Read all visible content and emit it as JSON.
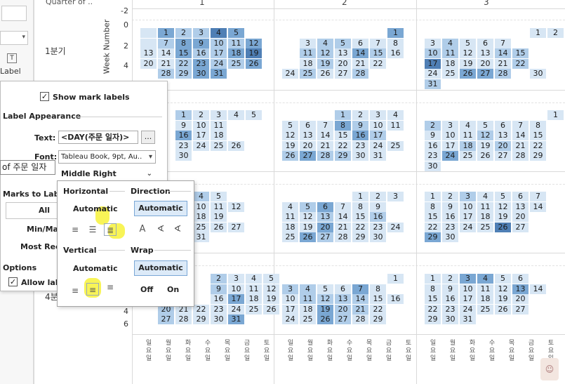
{
  "header": {
    "quarter_label": "Quarter of ..",
    "quarters": [
      "1",
      "2",
      "3"
    ]
  },
  "rows": {
    "row_labels": [
      {
        "label": "1분기",
        "y": 64
      },
      {
        "label": "4분",
        "y": 414
      }
    ],
    "y_axis_title": "Week Number"
  },
  "y_ticks": [
    {
      "v": "-2",
      "y": 16
    },
    {
      "v": "0",
      "y": 36
    },
    {
      "v": "2",
      "y": 66
    },
    {
      "v": "4",
      "y": 94
    },
    {
      "v": "4",
      "y": 444
    },
    {
      "v": "6",
      "y": 462
    }
  ],
  "weekday_labels": [
    "일요일",
    "월요일",
    "화요일",
    "수요일",
    "목요일",
    "금요일",
    "토요일"
  ],
  "calendar": {
    "colors": [
      "#d7e6f4",
      "#b0cde9",
      "#7aa7d3",
      "#4f7fb5"
    ],
    "blocks": [
      {
        "col": 0,
        "top": 40,
        "rows": [
          [
            [
              0,
              0,
              ""
            ],
            [
              0,
              0,
              ""
            ],
            [
              0,
              0,
              ""
            ],
            [
              1,
              2,
              "1"
            ],
            [
              2,
              1,
              "2"
            ],
            [
              3,
              1,
              "3"
            ],
            [
              4,
              3,
              "4"
            ],
            [
              5,
              2,
              "5"
            ]
          ],
          [
            [
              0,
              0,
              ""
            ],
            [
              1,
              1,
              "7"
            ],
            [
              2,
              2,
              "8"
            ],
            [
              3,
              2,
              "9"
            ],
            [
              4,
              1,
              "10"
            ],
            [
              5,
              1,
              "11"
            ],
            [
              6,
              2,
              "12"
            ]
          ],
          [
            [
              0,
              0,
              "13"
            ],
            [
              1,
              0,
              "14"
            ],
            [
              2,
              2,
              "15"
            ],
            [
              3,
              1,
              "16"
            ],
            [
              4,
              1,
              "17"
            ],
            [
              5,
              2,
              "18"
            ],
            [
              6,
              3,
              "19"
            ]
          ],
          [
            [
              0,
              0,
              "20"
            ],
            [
              1,
              0,
              "21"
            ],
            [
              2,
              1,
              "22"
            ],
            [
              3,
              2,
              "23"
            ],
            [
              4,
              1,
              "24"
            ],
            [
              5,
              1,
              "25"
            ],
            [
              6,
              2,
              "26"
            ]
          ],
          [
            [
              1,
              1,
              "28"
            ],
            [
              2,
              1,
              "29"
            ],
            [
              3,
              2,
              "30"
            ],
            [
              4,
              2,
              "31"
            ]
          ]
        ]
      },
      {
        "col": 1,
        "top": 40,
        "rows": [
          [
            [
              6,
              2,
              "1"
            ]
          ],
          [
            [
              1,
              0,
              "3"
            ],
            [
              2,
              1,
              "4"
            ],
            [
              3,
              1,
              "5"
            ],
            [
              4,
              0,
              "6"
            ],
            [
              5,
              0,
              "7"
            ],
            [
              6,
              0,
              "8"
            ]
          ],
          [
            [
              1,
              1,
              "11"
            ],
            [
              2,
              1,
              "12"
            ],
            [
              3,
              0,
              "13"
            ],
            [
              4,
              2,
              "14"
            ],
            [
              5,
              1,
              "15"
            ],
            [
              6,
              0,
              "16"
            ]
          ],
          [
            [
              1,
              0,
              "18"
            ],
            [
              2,
              1,
              "19"
            ],
            [
              3,
              0,
              "20"
            ],
            [
              4,
              0,
              "21"
            ],
            [
              5,
              0,
              "22"
            ]
          ],
          [
            [
              0,
              0,
              "24"
            ],
            [
              1,
              1,
              "25"
            ],
            [
              2,
              0,
              "26"
            ],
            [
              3,
              0,
              "27"
            ],
            [
              4,
              1,
              "28"
            ]
          ]
        ]
      },
      {
        "col": 2,
        "top": 40,
        "rows": [
          [
            [
              6,
              0,
              "1"
            ],
            [
              7,
              0,
              "2"
            ]
          ],
          [
            [
              0,
              0,
              "3"
            ],
            [
              1,
              1,
              "4"
            ],
            [
              2,
              0,
              "5"
            ],
            [
              3,
              0,
              "6"
            ],
            [
              4,
              0,
              "7"
            ]
          ],
          [
            [
              0,
              1,
              "10"
            ],
            [
              1,
              1,
              "11"
            ],
            [
              2,
              0,
              "12"
            ],
            [
              3,
              0,
              "13"
            ],
            [
              4,
              1,
              "14"
            ],
            [
              5,
              1,
              "15"
            ]
          ],
          [
            [
              0,
              3,
              "17"
            ],
            [
              1,
              0,
              "18"
            ],
            [
              2,
              0,
              "19"
            ],
            [
              3,
              0,
              "20"
            ],
            [
              4,
              0,
              "21"
            ],
            [
              5,
              1,
              "22"
            ]
          ],
          [
            [
              0,
              0,
              "24"
            ],
            [
              1,
              0,
              "25"
            ],
            [
              2,
              2,
              "26"
            ],
            [
              3,
              2,
              "27"
            ],
            [
              4,
              1,
              "28"
            ],
            [
              6,
              0,
              "30"
            ]
          ],
          [
            [
              0,
              1,
              "31"
            ]
          ]
        ]
      }
    ]
  },
  "format_panel": {
    "show_mark_labels": "Show mark labels",
    "label_appearance": "Label Appearance",
    "text_label": "Text:",
    "text_value": "<DAY(주문 일자)>",
    "dots": "...",
    "font_label": "Font:",
    "font_value": "Tableau Book, 9pt, Au..",
    "alignment_value": "Middle Right",
    "marks_to_label": "Marks to Labe",
    "all_label": "All",
    "min_max": "Min/Ma",
    "most_recent": "Most Reco",
    "options": "Options",
    "allow_label": "Allow lab"
  },
  "tooltip_text": "of 주문 일자",
  "alignment_popup": {
    "horizontal": "Horizontal",
    "direction": "Direction",
    "automatic": "Automatic",
    "vertical": "Vertical",
    "wrap": "Wrap",
    "off": "Off",
    "on": "On"
  },
  "left_strip": {
    "label": "Label"
  },
  "watermark": "☺"
}
